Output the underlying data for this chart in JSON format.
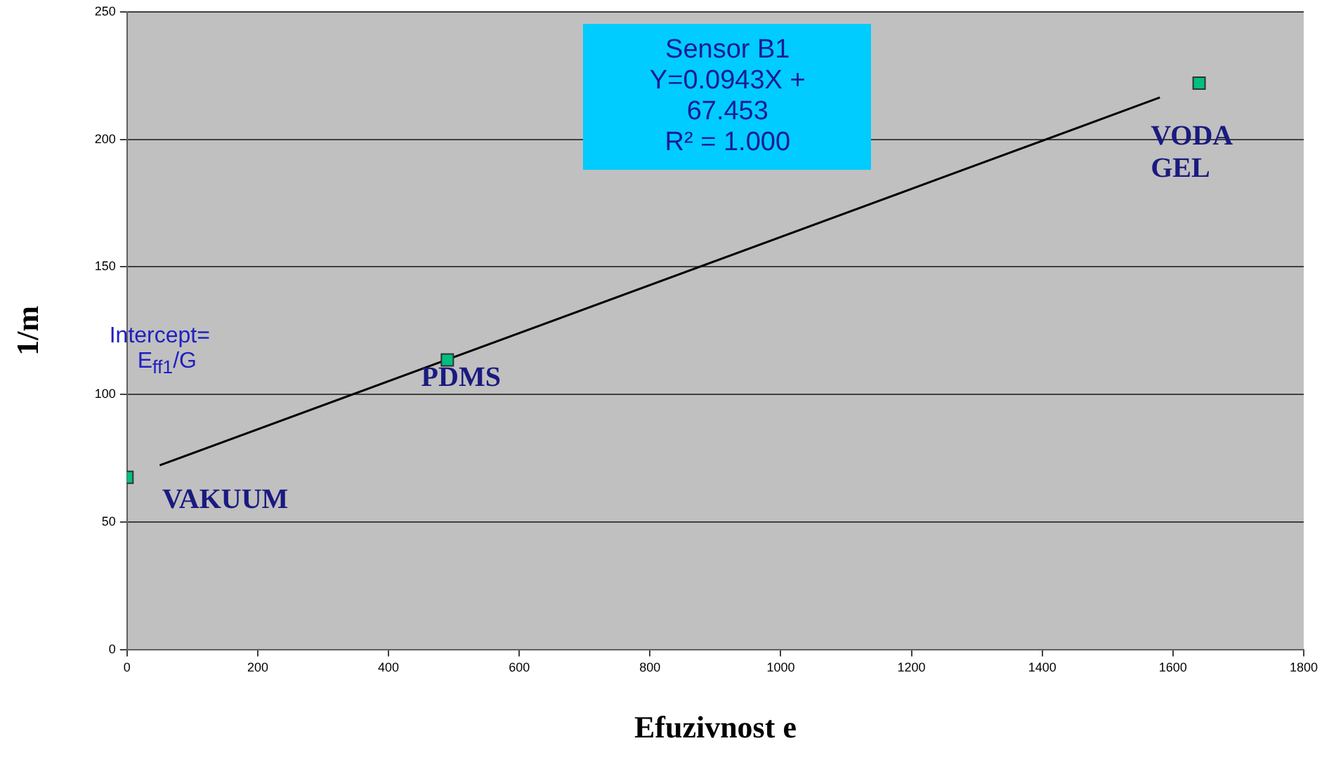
{
  "chart_data": {
    "type": "scatter",
    "xlabel": "Efuzivnost e",
    "ylabel": "1/m",
    "xlim": [
      0,
      1800
    ],
    "xticks": [
      0,
      200,
      400,
      600,
      800,
      1000,
      1200,
      1400,
      1600,
      1800
    ],
    "ylim": [
      0,
      250
    ],
    "yticks": [
      0,
      50,
      100,
      150,
      200,
      250
    ],
    "grid": "y",
    "legend": false,
    "series": [
      {
        "color": "#00c080",
        "marker": "square",
        "x": [
          0,
          490,
          1640
        ],
        "values": [
          67.5,
          113.5,
          222
        ]
      },
      {
        "type": "line",
        "color": "#000000",
        "marker": "none",
        "line_style": "solid",
        "x": [
          50,
          1580
        ],
        "values": [
          72.2,
          216.4
        ]
      }
    ],
    "annotations": [
      "Sensor B1\nY=0.0943X +\n67.453\nR² = 1.000",
      "Intercept=\nE$_{ff1}$/G",
      "VAKUUM",
      "PDMS",
      "VODA\nGEL"
    ]
  }
}
